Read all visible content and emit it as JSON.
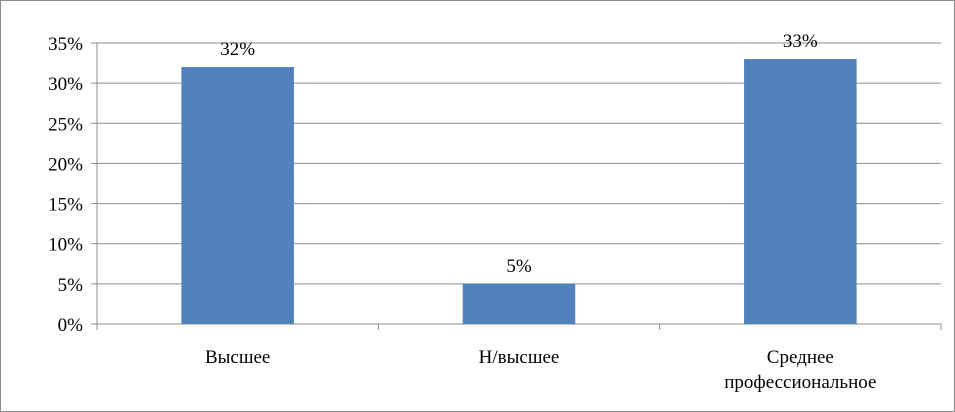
{
  "chart_data": {
    "type": "bar",
    "categories": [
      [
        "Высшее"
      ],
      [
        "Н/высшее"
      ],
      [
        "Среднее",
        "профессиональное"
      ]
    ],
    "values": [
      32,
      5,
      33
    ],
    "data_labels": [
      "32%",
      "5%",
      "33%"
    ],
    "ylim": [
      0,
      35
    ],
    "yticks": [
      0,
      5,
      10,
      15,
      20,
      25,
      30,
      35
    ],
    "ytick_labels": [
      "0%",
      "5%",
      "10%",
      "15%",
      "20%",
      "25%",
      "30%",
      "35%"
    ],
    "grid": true,
    "legend": "none",
    "bar_color": "#4f81bd",
    "grid_color": "#8c8c8c"
  }
}
